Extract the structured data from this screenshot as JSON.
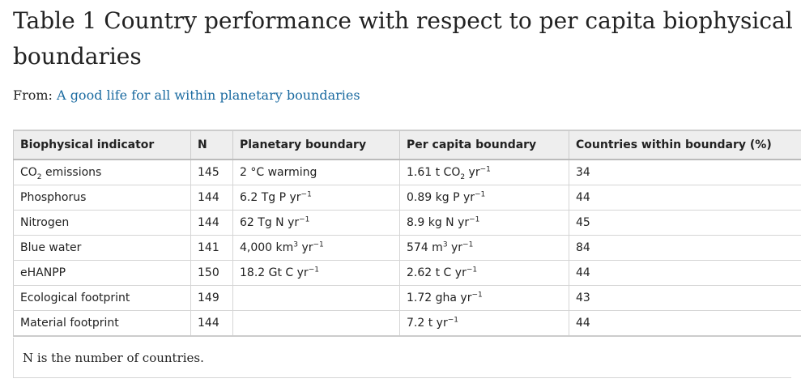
{
  "title": "Table 1 Country performance with respect to per capita biophysical boundaries",
  "source": {
    "prefix": "From:",
    "link_text": "A good life for all within planetary boundaries"
  },
  "table": {
    "headers": [
      "Biophysical indicator",
      "N",
      "Planetary boundary",
      "Per capita boundary",
      "Countries within boundary (%)"
    ],
    "rows": [
      {
        "indicator": [
          {
            "t": "CO"
          },
          {
            "sub": "2"
          },
          {
            "t": " emissions"
          }
        ],
        "n": "145",
        "planetary": [
          {
            "t": "2 °C warming"
          }
        ],
        "per_capita": [
          {
            "t": "1.61 t CO"
          },
          {
            "sub": "2"
          },
          {
            "t": " yr"
          },
          {
            "sup": "−1"
          }
        ],
        "within": "34"
      },
      {
        "indicator": [
          {
            "t": "Phosphorus"
          }
        ],
        "n": "144",
        "planetary": [
          {
            "t": "6.2 Tg P yr"
          },
          {
            "sup": "−1"
          }
        ],
        "per_capita": [
          {
            "t": "0.89 kg P yr"
          },
          {
            "sup": "−1"
          }
        ],
        "within": "44"
      },
      {
        "indicator": [
          {
            "t": "Nitrogen"
          }
        ],
        "n": "144",
        "planetary": [
          {
            "t": "62 Tg N yr"
          },
          {
            "sup": "−1"
          }
        ],
        "per_capita": [
          {
            "t": "8.9 kg N yr"
          },
          {
            "sup": "−1"
          }
        ],
        "within": "45"
      },
      {
        "indicator": [
          {
            "t": "Blue water"
          }
        ],
        "n": "141",
        "planetary": [
          {
            "t": "4,000 km"
          },
          {
            "sup": "3"
          },
          {
            "t": " yr"
          },
          {
            "sup": "−1"
          }
        ],
        "per_capita": [
          {
            "t": "574 m"
          },
          {
            "sup": "3"
          },
          {
            "t": " yr"
          },
          {
            "sup": "−1"
          }
        ],
        "within": "84"
      },
      {
        "indicator": [
          {
            "t": "eHANPP"
          }
        ],
        "n": "150",
        "planetary": [
          {
            "t": "18.2 Gt C yr"
          },
          {
            "sup": "−1"
          }
        ],
        "per_capita": [
          {
            "t": "2.62 t C yr"
          },
          {
            "sup": "−1"
          }
        ],
        "within": "44"
      },
      {
        "indicator": [
          {
            "t": "Ecological footprint"
          }
        ],
        "n": "149",
        "planetary": [],
        "per_capita": [
          {
            "t": "1.72 gha yr"
          },
          {
            "sup": "−1"
          }
        ],
        "within": "43"
      },
      {
        "indicator": [
          {
            "t": "Material footprint"
          }
        ],
        "n": "144",
        "planetary": [],
        "per_capita": [
          {
            "t": "7.2 t yr"
          },
          {
            "sup": "−1"
          }
        ],
        "within": "44"
      }
    ]
  },
  "footnote": "N is the number of countries.",
  "colors": {
    "link": "#1a6aa0",
    "header_bg": "#eeeeee",
    "text": "#222222"
  }
}
